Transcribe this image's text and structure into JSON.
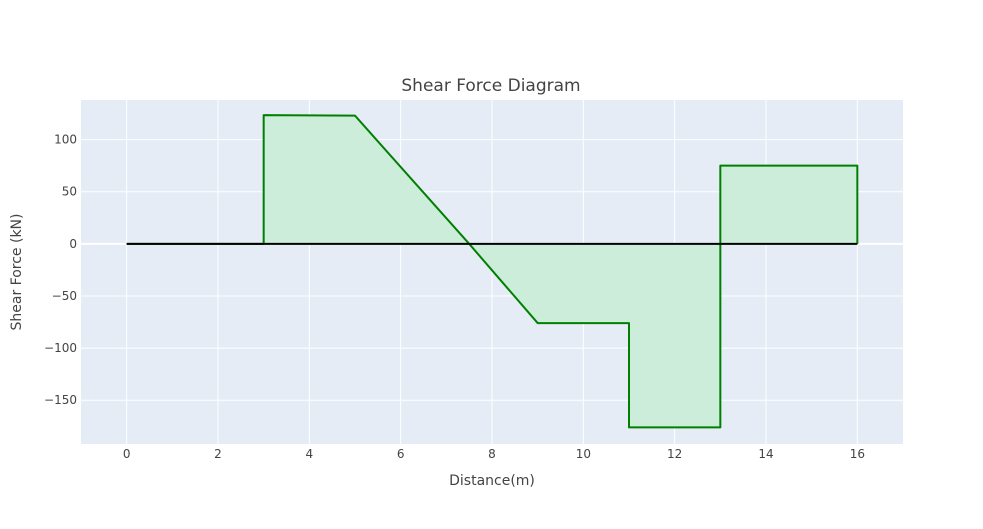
{
  "chart_data": {
    "type": "area",
    "title": "Shear Force Diagram",
    "xlabel": "Distance(m)",
    "ylabel": "Shear Force (kN)",
    "xlim": [
      -1,
      17
    ],
    "ylim": [
      -192,
      138
    ],
    "xticks": [
      0,
      2,
      4,
      6,
      8,
      10,
      12,
      14,
      16
    ],
    "yticks": [
      -150,
      -100,
      -50,
      0,
      50,
      100
    ],
    "xtick_labels": [
      "0",
      "2",
      "4",
      "6",
      "8",
      "10",
      "12",
      "14",
      "16"
    ],
    "ytick_labels": [
      "−150",
      "−100",
      "−50",
      "0",
      "50",
      "100"
    ],
    "grid": true,
    "legend": "none",
    "series": [
      {
        "role": "shear",
        "points": [
          [
            0,
            0
          ],
          [
            3,
            0
          ],
          [
            3,
            123.5
          ],
          [
            5,
            123
          ],
          [
            7.5,
            0
          ],
          [
            9,
            -76
          ],
          [
            11,
            -76
          ],
          [
            11,
            -176
          ],
          [
            13,
            -176
          ],
          [
            13,
            75
          ],
          [
            16,
            75
          ],
          [
            16,
            0
          ]
        ],
        "line_color": "#008000",
        "fill_color": "#ccedd9"
      },
      {
        "role": "baseline",
        "points": [
          [
            0,
            0
          ],
          [
            16,
            0
          ]
        ],
        "line_color": "#000000"
      }
    ],
    "background_color": "#e5ecf6",
    "grid_color": "#ffffff"
  }
}
